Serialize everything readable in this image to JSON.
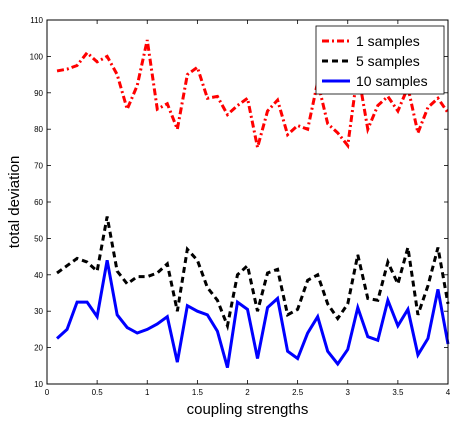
{
  "chart_data": {
    "type": "line",
    "title": "",
    "xlabel": "coupling strengths",
    "ylabel": "total deviation",
    "xlim": [
      0,
      4
    ],
    "ylim": [
      10,
      110
    ],
    "xticks": [
      0,
      0.5,
      1,
      1.5,
      2,
      2.5,
      3,
      3.5,
      4
    ],
    "xtick_labels": [
      "0",
      "0.5",
      "1",
      "1.5",
      "2",
      "2.5",
      "3",
      "3.5",
      "4"
    ],
    "yticks": [
      10,
      20,
      30,
      40,
      50,
      60,
      70,
      80,
      90,
      100,
      110
    ],
    "ytick_labels": [
      "10",
      "20",
      "30",
      "40",
      "50",
      "60",
      "70",
      "80",
      "90",
      "100",
      "110"
    ],
    "grid": false,
    "legend_position": "top-right",
    "x": [
      0.1,
      0.2,
      0.3,
      0.4,
      0.5,
      0.6,
      0.7,
      0.8,
      0.9,
      1.0,
      1.1,
      1.2,
      1.3,
      1.4,
      1.5,
      1.6,
      1.7,
      1.8,
      1.9,
      2.0,
      2.1,
      2.2,
      2.3,
      2.4,
      2.5,
      2.6,
      2.7,
      2.8,
      2.9,
      3.0,
      3.1,
      3.2,
      3.3,
      3.4,
      3.5,
      3.6,
      3.7,
      3.8,
      3.9,
      4.0
    ],
    "series": [
      {
        "name": "1 samples",
        "color": "#ff0000",
        "dash": "dashdot",
        "values": [
          96,
          96.5,
          97.5,
          101,
          98.5,
          100,
          95,
          85.5,
          92,
          104.5,
          85.5,
          87,
          80,
          95,
          97,
          88.5,
          89,
          84,
          86.5,
          88.5,
          75,
          85,
          88,
          78.5,
          81,
          80,
          93,
          81.5,
          79,
          75.5,
          96,
          80,
          86.5,
          89,
          85,
          91.5,
          79,
          86,
          88.5,
          84.5
        ]
      },
      {
        "name": "5 samples",
        "color": "#000000",
        "dash": "dashed",
        "values": [
          40.5,
          42.5,
          44.5,
          43.5,
          41,
          56,
          41,
          37.5,
          39.5,
          39.5,
          40.5,
          43,
          30,
          47,
          44,
          36.5,
          33,
          26,
          40,
          42.5,
          30,
          40.5,
          41.5,
          29,
          30.5,
          38.5,
          40,
          32,
          28,
          32,
          45.5,
          33.5,
          33,
          43.5,
          37.5,
          47.5,
          29,
          37,
          47.5,
          32
        ]
      },
      {
        "name": "10 samples",
        "color": "#0000ff",
        "dash": "solid",
        "values": [
          22.5,
          25,
          32.5,
          32.5,
          28.5,
          44,
          29,
          25.5,
          24,
          25,
          26.5,
          28.5,
          16,
          31.5,
          30,
          29,
          24.5,
          14.5,
          32.5,
          30.5,
          17,
          31,
          33.5,
          19,
          17,
          24,
          28.5,
          19,
          15.5,
          19.5,
          31,
          23,
          22,
          33,
          26,
          30.5,
          18,
          22.5,
          36,
          21
        ]
      }
    ]
  }
}
